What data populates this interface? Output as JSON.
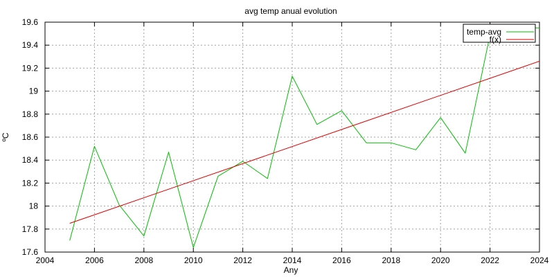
{
  "chart_data": {
    "type": "line",
    "title": "avg temp anual evolution",
    "xlabel": "Any",
    "ylabel": "ºC",
    "xlim": [
      2004,
      2024
    ],
    "ylim": [
      17.6,
      19.6
    ],
    "xticks": [
      2004,
      2006,
      2008,
      2010,
      2012,
      2014,
      2016,
      2018,
      2020,
      2022,
      2024
    ],
    "yticks": [
      17.6,
      17.8,
      18,
      18.2,
      18.4,
      18.6,
      18.8,
      19,
      19.2,
      19.4,
      19.6
    ],
    "xtick_labels": [
      "2004",
      "2006",
      "2008",
      "2010",
      "2012",
      "2014",
      "2016",
      "2018",
      "2020",
      "2022",
      "2024"
    ],
    "ytick_labels": [
      "17.6",
      "17.8",
      "18",
      "18.2",
      "18.4",
      "18.6",
      "18.8",
      "19",
      "19.2",
      "19.4",
      "19.6"
    ],
    "grid": true,
    "legend_position": "top-right",
    "series": [
      {
        "name": "temp-avg",
        "color": "#00c000",
        "x": [
          2005,
          2006,
          2007,
          2008,
          2009,
          2010,
          2011,
          2012,
          2013,
          2014,
          2015,
          2016,
          2017,
          2018,
          2019,
          2020,
          2021,
          2022,
          2023,
          2024
        ],
        "y": [
          17.7,
          18.52,
          18.01,
          17.74,
          18.47,
          17.64,
          18.26,
          18.39,
          18.24,
          19.13,
          18.71,
          18.83,
          18.55,
          18.55,
          18.49,
          18.77,
          18.46,
          19.49,
          19.55,
          19.55
        ]
      },
      {
        "name": "f(x)",
        "color": "#e00000",
        "x": [
          2005,
          2024
        ],
        "y": [
          17.85,
          19.26
        ]
      }
    ]
  }
}
